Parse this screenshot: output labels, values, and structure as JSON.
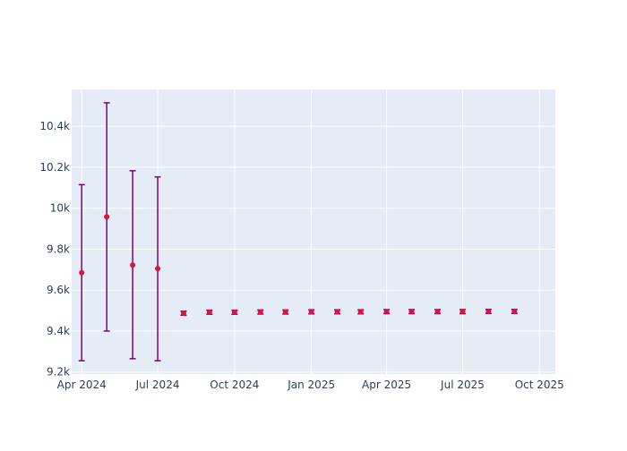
{
  "chart_data": {
    "type": "scatter",
    "title": "",
    "xlabel": "",
    "ylabel": "",
    "x_ticks": [
      "Apr 2024",
      "Jul 2024",
      "Oct 2024",
      "Jan 2025",
      "Apr 2025",
      "Jul 2025",
      "Oct 2025"
    ],
    "x_tick_dates": [
      "2024-04-01",
      "2024-07-01",
      "2024-10-01",
      "2025-01-01",
      "2025-04-01",
      "2025-07-01",
      "2025-10-01"
    ],
    "xlim": [
      "2024-03-20",
      "2025-10-20"
    ],
    "y_ticks": [
      "9.2k",
      "9.4k",
      "9.6k",
      "9.8k",
      "10k",
      "10.2k",
      "10.4k"
    ],
    "y_tick_values": [
      9200,
      9400,
      9600,
      9800,
      10000,
      10200,
      10400
    ],
    "ylim": [
      9190,
      10580
    ],
    "grid": true,
    "plot_bgcolor": "#e5ecf6",
    "marker_color": "#dc143c",
    "errorbar_color": "#800080",
    "series": [
      {
        "points": [
          {
            "x": "2024-04-01",
            "y": 9685,
            "low": 9255,
            "high": 10115
          },
          {
            "x": "2024-05-01",
            "y": 9958,
            "low": 9400,
            "high": 10515
          },
          {
            "x": "2024-06-01",
            "y": 9722,
            "low": 9265,
            "high": 10183
          },
          {
            "x": "2024-07-01",
            "y": 9705,
            "low": 9255,
            "high": 10153
          },
          {
            "x": "2024-08-01",
            "y": 9487,
            "low": 9477,
            "high": 9497
          },
          {
            "x": "2024-09-01",
            "y": 9492,
            "low": 9482,
            "high": 9502
          },
          {
            "x": "2024-10-01",
            "y": 9492,
            "low": 9482,
            "high": 9502
          },
          {
            "x": "2024-11-01",
            "y": 9493,
            "low": 9483,
            "high": 9503
          },
          {
            "x": "2024-12-01",
            "y": 9493,
            "low": 9483,
            "high": 9503
          },
          {
            "x": "2025-01-01",
            "y": 9494,
            "low": 9484,
            "high": 9504
          },
          {
            "x": "2025-02-01",
            "y": 9494,
            "low": 9484,
            "high": 9504
          },
          {
            "x": "2025-03-01",
            "y": 9494,
            "low": 9484,
            "high": 9504
          },
          {
            "x": "2025-04-01",
            "y": 9495,
            "low": 9485,
            "high": 9505
          },
          {
            "x": "2025-05-01",
            "y": 9495,
            "low": 9485,
            "high": 9505
          },
          {
            "x": "2025-06-01",
            "y": 9495,
            "low": 9485,
            "high": 9505
          },
          {
            "x": "2025-07-01",
            "y": 9495,
            "low": 9485,
            "high": 9505
          },
          {
            "x": "2025-08-01",
            "y": 9496,
            "low": 9486,
            "high": 9506
          },
          {
            "x": "2025-09-01",
            "y": 9496,
            "low": 9486,
            "high": 9506
          }
        ]
      }
    ]
  }
}
